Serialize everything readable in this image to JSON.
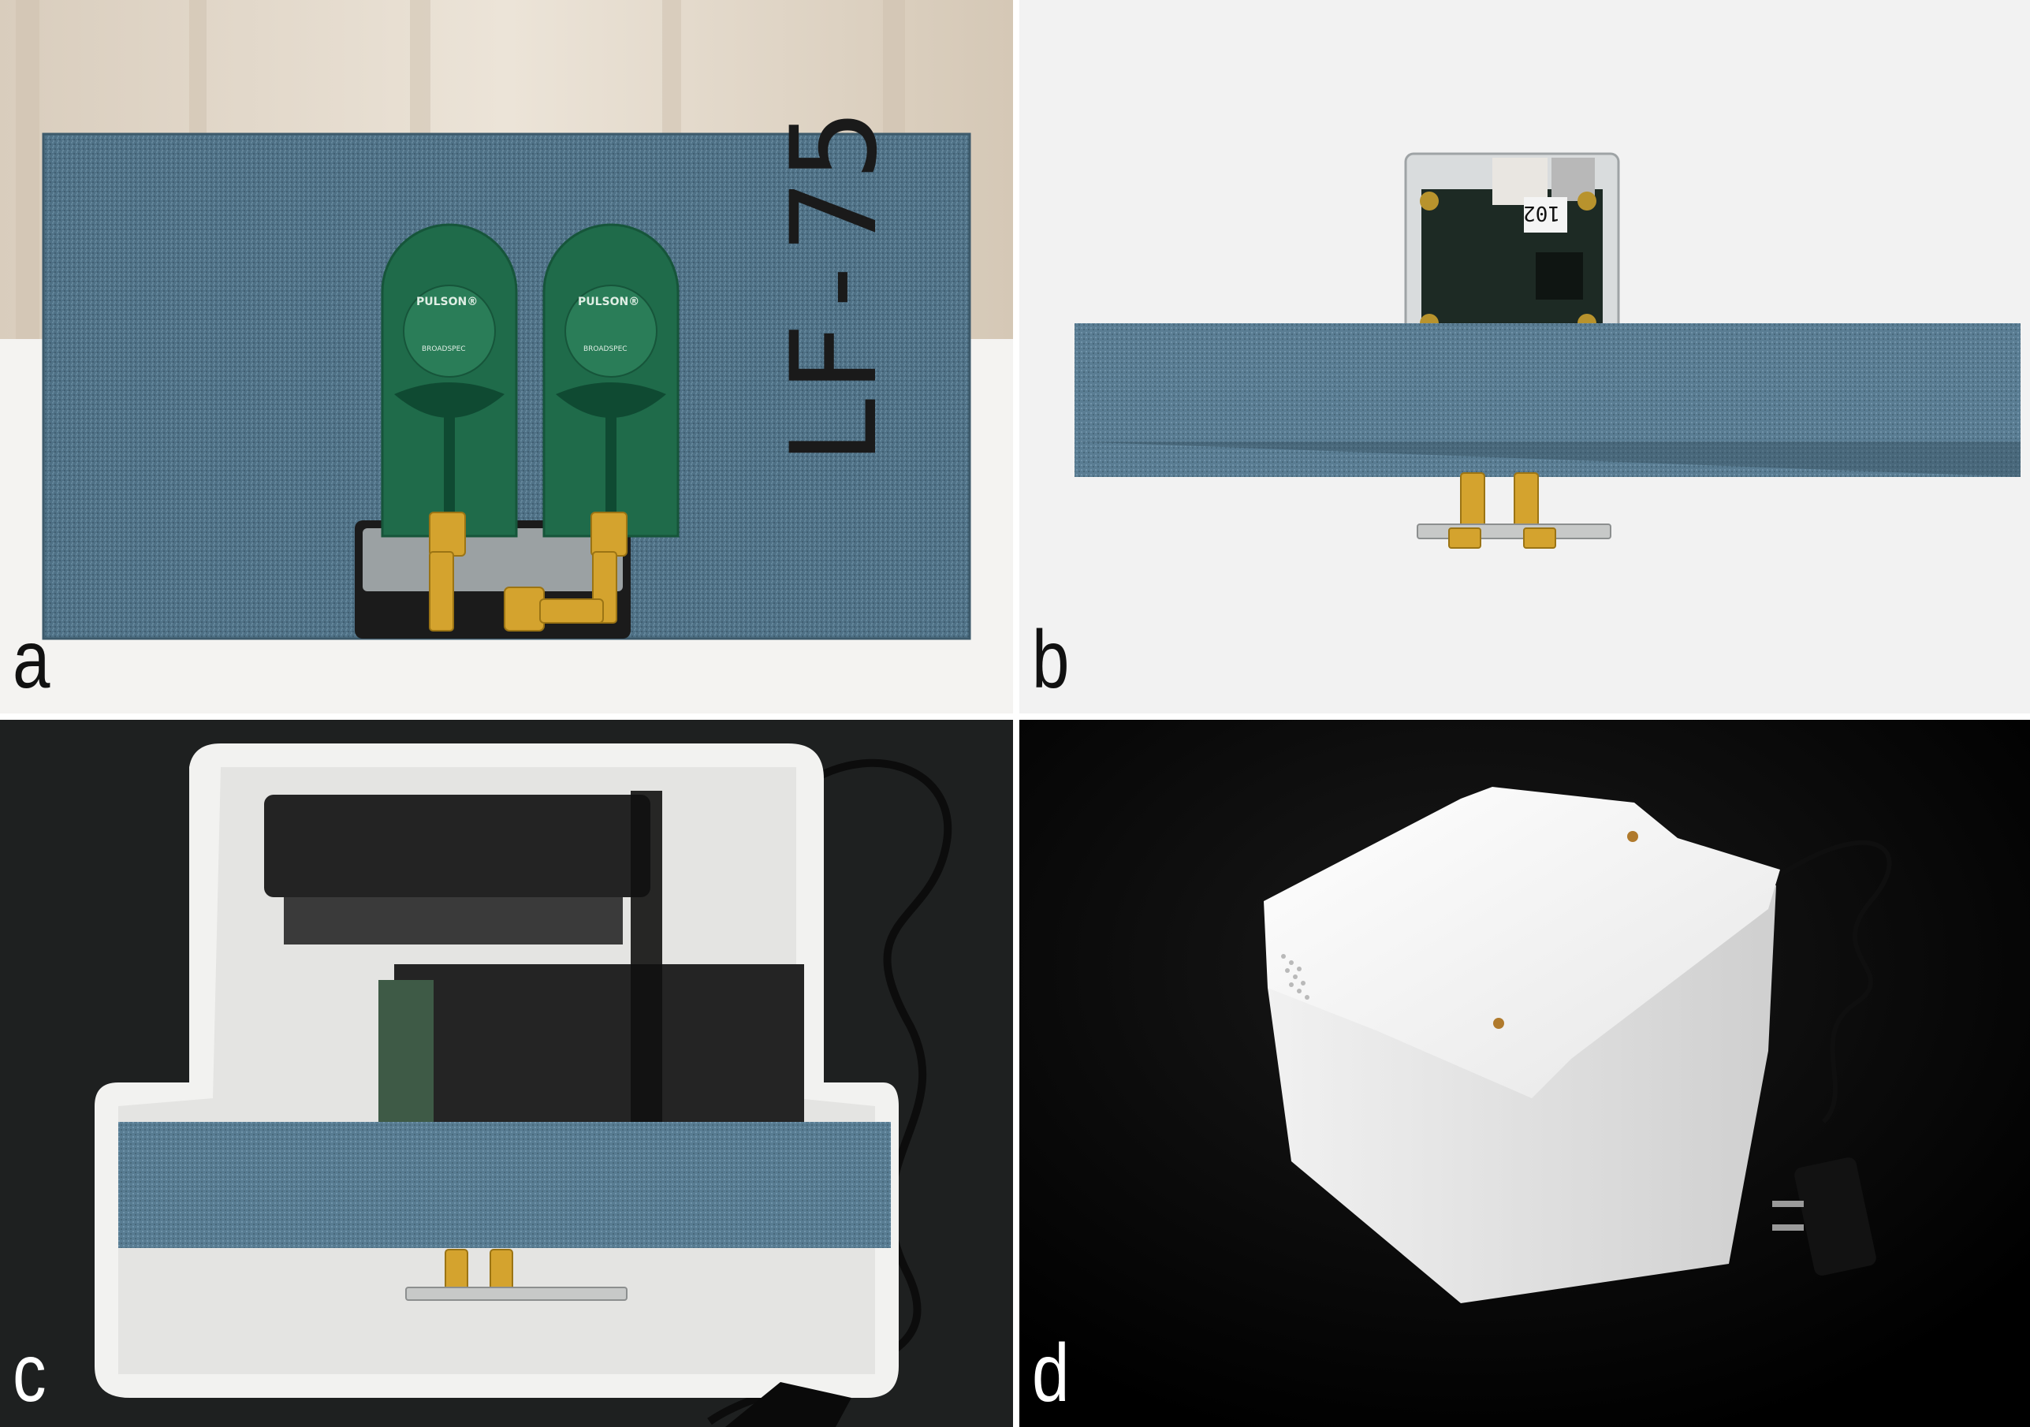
{
  "figure": {
    "panels": [
      {
        "label": "a"
      },
      {
        "label": "b"
      },
      {
        "label": "c"
      },
      {
        "label": "d"
      }
    ]
  },
  "panel_a": {
    "antenna_brand": "PULSON®",
    "antenna_sub": "BROADSPEC",
    "foam_marking": "LF-75"
  },
  "panel_b": {
    "board_number": "102"
  }
}
